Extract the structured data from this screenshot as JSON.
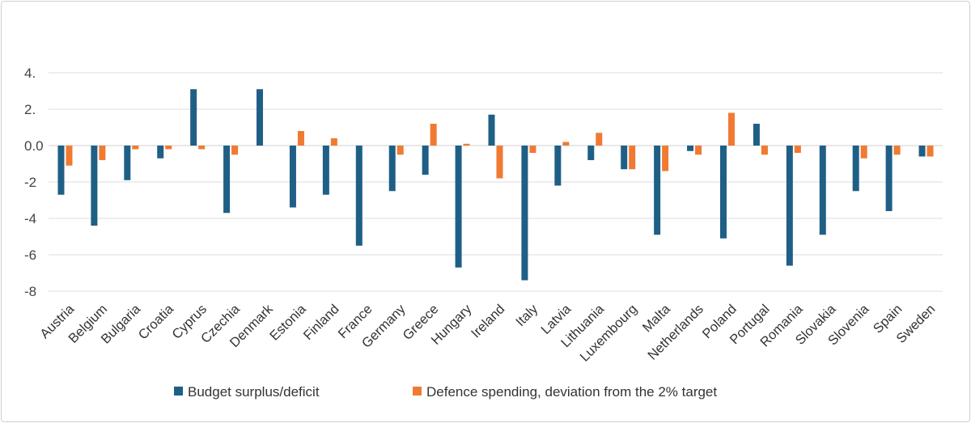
{
  "chart_data": {
    "type": "bar",
    "title": "",
    "xlabel": "",
    "ylabel": "",
    "ylim": [
      -8,
      4
    ],
    "yticks": [
      4,
      2,
      0,
      -2,
      -4,
      -6,
      -8
    ],
    "ytick_labels": [
      "4.",
      "2.",
      "0.0",
      "-2",
      "-4",
      "-6",
      "-8"
    ],
    "grid": true,
    "legend_position": "bottom",
    "categories": [
      "Austria",
      "Belgium",
      "Bulgaria",
      "Croatia",
      "Cyprus",
      "Czechia",
      "Denmark",
      "Estonia",
      "Finland",
      "France",
      "Germany",
      "Greece",
      "Hungary",
      "Ireland",
      "Italy",
      "Latvia",
      "Lithuania",
      "Luxembourg",
      "Malta",
      "Netherlands",
      "Poland",
      "Portugal",
      "Romania",
      "Slovakia",
      "Slovenia",
      "Spain",
      "Sweden"
    ],
    "series": [
      {
        "name": "Budget surplus/deficit",
        "color": "#1f5f86",
        "values": [
          -2.7,
          -4.4,
          -1.9,
          -0.7,
          3.1,
          -3.7,
          3.1,
          -3.4,
          -2.7,
          -5.5,
          -2.5,
          -1.6,
          -6.7,
          1.7,
          -7.4,
          -2.2,
          -0.8,
          -1.3,
          -4.9,
          -0.3,
          -5.1,
          1.2,
          -6.6,
          -4.9,
          -2.5,
          -3.6,
          -0.6
        ]
      },
      {
        "name": "Defence spending, deviation from the 2% target",
        "color": "#f07a32",
        "values": [
          -1.1,
          -0.8,
          -0.2,
          -0.2,
          -0.2,
          -0.5,
          0.0,
          0.8,
          0.4,
          0.0,
          -0.5,
          1.2,
          0.1,
          -1.8,
          -0.4,
          0.2,
          0.7,
          -1.3,
          -1.4,
          -0.5,
          1.8,
          -0.5,
          -0.4,
          0.0,
          -0.7,
          -0.5,
          -0.6
        ]
      }
    ]
  }
}
